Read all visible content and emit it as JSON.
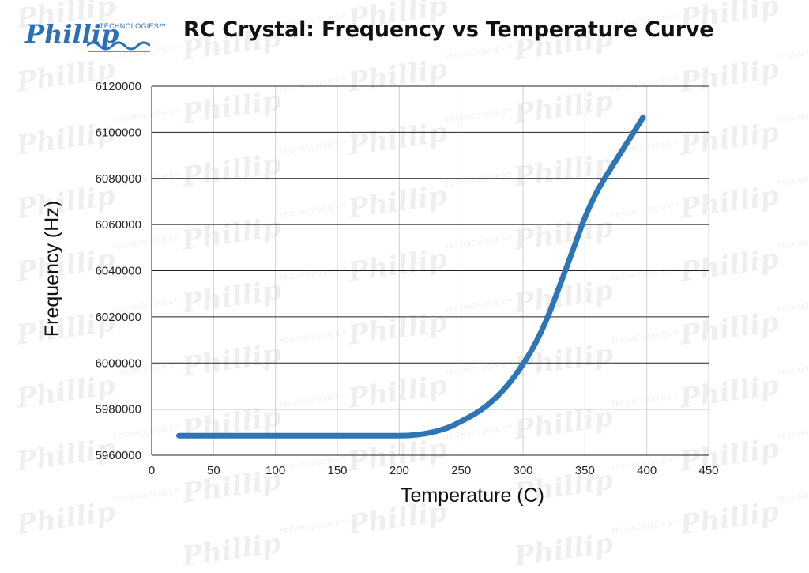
{
  "logo": {
    "text": "Phillip",
    "subtext": "TECHNOLOGIES™"
  },
  "watermark": {
    "text": "Phillip",
    "subtext": "TECHNOLOGIES™"
  },
  "colors": {
    "series": "#2e75b6",
    "grid": "#d0d0d0",
    "hgrid": "#222222",
    "brand": "#2a6fb8"
  },
  "chart_data": {
    "type": "line",
    "title": "RC Crystal: Frequency vs Temperature Curve",
    "xlabel": "Temperature (C)",
    "ylabel": "Frequency (Hz)",
    "xlim": [
      0,
      450
    ],
    "ylim": [
      5960000,
      6120000
    ],
    "x_ticks": [
      0,
      50,
      100,
      150,
      200,
      250,
      300,
      350,
      400,
      450
    ],
    "y_ticks": [
      5960000,
      5980000,
      6000000,
      6020000,
      6040000,
      6060000,
      6080000,
      6100000,
      6120000
    ],
    "x_tick_labels": [
      "0",
      "50",
      "100",
      "150",
      "200",
      "250",
      "300",
      "350",
      "400",
      "450"
    ],
    "y_tick_labels": [
      "5960000",
      "5980000",
      "6000000",
      "6020000",
      "6040000",
      "6060000",
      "6080000",
      "6100000",
      "6120000"
    ],
    "grid": true,
    "legend": "none",
    "series": [
      {
        "x": [
          22,
          50,
          100,
          150,
          200,
          210,
          220,
          230,
          240,
          250,
          260,
          270,
          280,
          290,
          300,
          310,
          320,
          330,
          340,
          350,
          360,
          370,
          380,
          390,
          397
        ],
        "y": [
          5968500,
          5968500,
          5968500,
          5968500,
          5968500,
          5968700,
          5969300,
          5970400,
          5972100,
          5974700,
          5977600,
          5981200,
          5986000,
          5992000,
          5999500,
          6008500,
          6020000,
          6034000,
          6048500,
          6063000,
          6074500,
          6083500,
          6092000,
          6100500,
          6106500
        ]
      }
    ]
  }
}
